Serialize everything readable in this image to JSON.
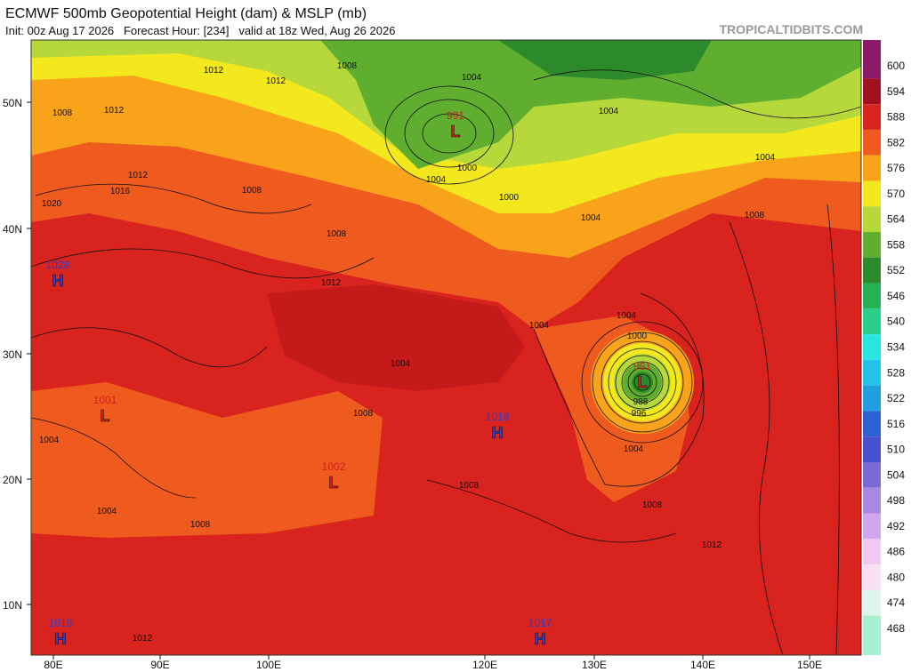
{
  "header": {
    "title": "ECMWF 500mb Geopotential Height (dam) & MSLP (mb)",
    "subtitle": "Init: 00z Aug 17 2026   Forecast Hour: [234]   valid at 18z Wed, Aug 26 2026",
    "watermark": "TROPICALTIDBITS.COM"
  },
  "colorbar": {
    "labels": [
      600,
      594,
      588,
      582,
      576,
      570,
      564,
      558,
      552,
      546,
      540,
      534,
      528,
      522,
      516,
      510,
      504,
      498,
      492,
      486,
      480,
      474,
      468
    ],
    "colors": [
      "#8b1a6b",
      "#a01020",
      "#d8231f",
      "#ef5a1e",
      "#f9a31b",
      "#f2e81d",
      "#b6d83a",
      "#5fae2f",
      "#2d8a2a",
      "#23b355",
      "#2ccf8a",
      "#27e6e0",
      "#23c2ea",
      "#219ee0",
      "#2c62d2",
      "#4a4fd0",
      "#7a6ad8",
      "#a788e3",
      "#cfa7ef",
      "#f0c8f0",
      "#f8e0f4",
      "#ddf5ec",
      "#a6f0cf"
    ]
  },
  "map": {
    "lat_labels": [
      "50N",
      "40N",
      "30N",
      "20N",
      "10N"
    ],
    "lon_labels": [
      "80E",
      "90E",
      "100E",
      "120E",
      "130E",
      "140E",
      "150E"
    ],
    "centers": [
      {
        "letter": "H",
        "pressure": 1028
      },
      {
        "letter": "L",
        "pressure": 991
      },
      {
        "letter": "L",
        "pressure": 961
      },
      {
        "letter": "L",
        "pressure": 1001
      },
      {
        "letter": "L",
        "pressure": 1002
      },
      {
        "letter": "H",
        "pressure": 1018
      },
      {
        "letter": "H",
        "pressure": 1018
      },
      {
        "letter": "H",
        "pressure": 1017
      }
    ],
    "isobar_labels": [
      "1012",
      "1012",
      "1008",
      "1012",
      "1008",
      "1004",
      "1004",
      "1004",
      "1000",
      "1004",
      "1000",
      "1004",
      "1008",
      "1008",
      "1016",
      "1012",
      "1020",
      "1008",
      "1004",
      "1004",
      "1000",
      "988",
      "996",
      "1004",
      "1008",
      "1008",
      "1012",
      "1004",
      "1004",
      "1008",
      "1004",
      "1008",
      "1012",
      "1012"
    ]
  }
}
